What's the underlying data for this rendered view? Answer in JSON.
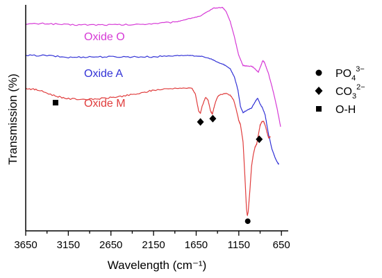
{
  "chart_data": {
    "type": "line",
    "xlabel": "Wavelength (cm⁻¹)",
    "ylabel": "Transmission (%)",
    "xlim": [
      3650,
      570
    ],
    "x_reversed": true,
    "ylim": [
      0,
      100
    ],
    "y_tick_labels": false,
    "grid": false,
    "x_ticks": [
      3650,
      3150,
      2650,
      2150,
      1650,
      1150,
      650
    ],
    "series": [
      {
        "name": "Oxide O",
        "color": "#d63ad6",
        "points": [
          [
            3650,
            91.4
          ],
          [
            3400,
            91.7
          ],
          [
            3150,
            91.1
          ],
          [
            2900,
            91.1
          ],
          [
            2650,
            91.1
          ],
          [
            2400,
            91.1
          ],
          [
            2150,
            91.7
          ],
          [
            1900,
            92.3
          ],
          [
            1750,
            93.8
          ],
          [
            1600,
            95.1
          ],
          [
            1450,
            98.8
          ],
          [
            1340,
            99.1
          ],
          [
            1300,
            97.3
          ],
          [
            1250,
            92.6
          ],
          [
            1200,
            85.2
          ],
          [
            1150,
            76.9
          ],
          [
            1100,
            72.3
          ],
          [
            1050,
            72.0
          ],
          [
            1000,
            72.0
          ],
          [
            960,
            70.8
          ],
          [
            920,
            69.2
          ],
          [
            890,
            72.3
          ],
          [
            870,
            74.5
          ],
          [
            850,
            73.8
          ],
          [
            800,
            68.3
          ],
          [
            750,
            60.9
          ],
          [
            700,
            52.3
          ],
          [
            660,
            44.0
          ]
        ]
      },
      {
        "name": "Oxide  A",
        "color": "#3232d6",
        "points": [
          [
            3650,
            76.9
          ],
          [
            3400,
            76.9
          ],
          [
            3150,
            76.0
          ],
          [
            2900,
            76.3
          ],
          [
            2650,
            76.3
          ],
          [
            2400,
            76.3
          ],
          [
            2150,
            76.3
          ],
          [
            1900,
            76.9
          ],
          [
            1750,
            76.9
          ],
          [
            1600,
            76.6
          ],
          [
            1480,
            75.4
          ],
          [
            1400,
            73.8
          ],
          [
            1320,
            72.6
          ],
          [
            1250,
            70.8
          ],
          [
            1200,
            66.8
          ],
          [
            1160,
            60.9
          ],
          [
            1130,
            53.2
          ],
          [
            1100,
            50.5
          ],
          [
            1050,
            51.7
          ],
          [
            1000,
            52.6
          ],
          [
            960,
            55.4
          ],
          [
            930,
            57.2
          ],
          [
            900,
            54.5
          ],
          [
            870,
            52.6
          ],
          [
            840,
            49.2
          ],
          [
            800,
            40.3
          ],
          [
            760,
            33.5
          ],
          [
            720,
            29.2
          ],
          [
            700,
            27.7
          ],
          [
            680,
            26.5
          ]
        ]
      },
      {
        "name": "Oxide M",
        "color": "#e03c3c",
        "points": [
          [
            3650,
            61.8
          ],
          [
            3500,
            60.9
          ],
          [
            3300,
            58.2
          ],
          [
            3150,
            56.9
          ],
          [
            2900,
            56.6
          ],
          [
            2700,
            57.2
          ],
          [
            2500,
            58.2
          ],
          [
            2300,
            59.4
          ],
          [
            2150,
            60.9
          ],
          [
            1900,
            61.8
          ],
          [
            1700,
            61.8
          ],
          [
            1660,
            59.1
          ],
          [
            1620,
            51.1
          ],
          [
            1600,
            50.2
          ],
          [
            1580,
            53.5
          ],
          [
            1540,
            57.5
          ],
          [
            1510,
            56.3
          ],
          [
            1480,
            51.1
          ],
          [
            1460,
            49.8
          ],
          [
            1430,
            54.5
          ],
          [
            1400,
            57.8
          ],
          [
            1370,
            58.8
          ],
          [
            1300,
            59.4
          ],
          [
            1250,
            58.5
          ],
          [
            1210,
            56.3
          ],
          [
            1180,
            52.0
          ],
          [
            1150,
            46.8
          ],
          [
            1130,
            44.9
          ],
          [
            1100,
            36.9
          ],
          [
            1080,
            22.2
          ],
          [
            1060,
            6.2
          ],
          [
            1050,
            2.8
          ],
          [
            1040,
            4.6
          ],
          [
            1020,
            14.5
          ],
          [
            1000,
            25.8
          ],
          [
            980,
            31.1
          ],
          [
            960,
            34.5
          ],
          [
            940,
            36.0
          ],
          [
            920,
            40.3
          ],
          [
            900,
            44.6
          ],
          [
            880,
            46.2
          ],
          [
            860,
            46.5
          ],
          [
            840,
            44.6
          ],
          [
            820,
            41.5
          ],
          [
            800,
            38.8
          ],
          [
            780,
            39.4
          ]
        ]
      }
    ],
    "series_labels": [
      "Oxide O",
      "Oxide  A",
      "Oxide M"
    ],
    "markers": [
      {
        "symbol": "circle",
        "x": 1045,
        "y": 0.3
      },
      {
        "symbol": "diamond",
        "x": 1600,
        "y": 46.2
      },
      {
        "symbol": "diamond",
        "x": 1455,
        "y": 47.7
      },
      {
        "symbol": "diamond",
        "x": 910,
        "y": 38.2
      },
      {
        "symbol": "square",
        "x": 3300,
        "y": 55.1
      }
    ],
    "legend": {
      "placement": "right",
      "entries": [
        {
          "symbol": "circle",
          "base": "PO",
          "sub": "4",
          "sup": "3−"
        },
        {
          "symbol": "diamond",
          "base": "CO",
          "sub": "3",
          "sup": "2−"
        },
        {
          "symbol": "square",
          "base": "O-H",
          "sub": "",
          "sup": ""
        }
      ]
    }
  }
}
